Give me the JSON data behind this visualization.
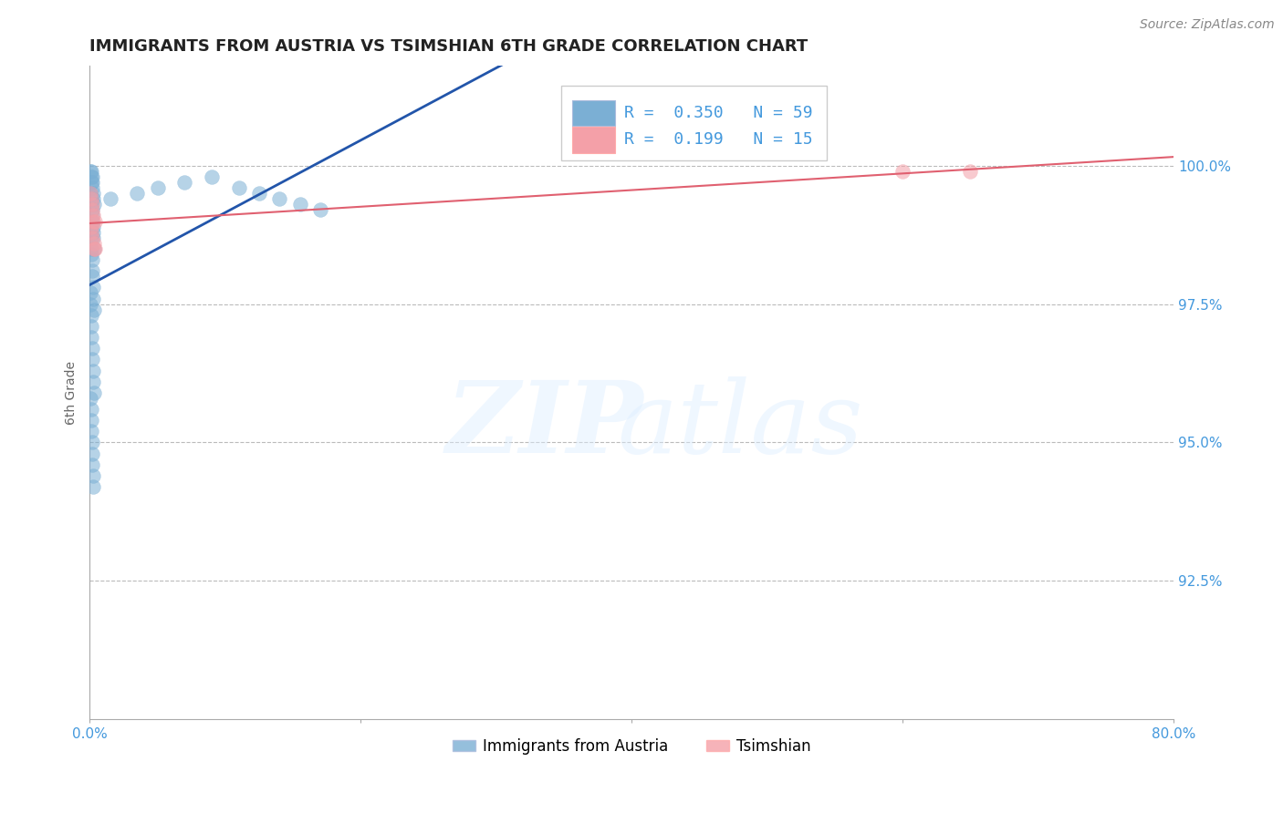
{
  "title": "IMMIGRANTS FROM AUSTRIA VS TSIMSHIAN 6TH GRADE CORRELATION CHART",
  "source": "Source: ZipAtlas.com",
  "ylabel": "6th Grade",
  "xlim": [
    0.0,
    80.0
  ],
  "ylim": [
    90.0,
    101.8
  ],
  "yticks": [
    92.5,
    95.0,
    97.5,
    100.0
  ],
  "yticklabels": [
    "92.5%",
    "95.0%",
    "97.5%",
    "100.0%"
  ],
  "xtick_vals": [
    0.0,
    20.0,
    40.0,
    60.0,
    80.0
  ],
  "xticklabels": [
    "0.0%",
    "",
    "",
    "",
    "80.0%"
  ],
  "blue_R": 0.35,
  "blue_N": 59,
  "pink_R": 0.199,
  "pink_N": 15,
  "blue_color": "#7BAFD4",
  "pink_color": "#F4A0A8",
  "blue_line_color": "#2255AA",
  "pink_line_color": "#E06070",
  "legend_label_blue": "Immigrants from Austria",
  "legend_label_pink": "Tsimshian",
  "blue_x": [
    0.05,
    0.08,
    0.1,
    0.12,
    0.15,
    0.18,
    0.2,
    0.22,
    0.25,
    0.28,
    0.06,
    0.09,
    0.11,
    0.14,
    0.16,
    0.19,
    0.21,
    0.24,
    0.27,
    0.3,
    0.05,
    0.08,
    0.1,
    0.13,
    0.15,
    0.17,
    0.2,
    0.23,
    0.26,
    0.3,
    0.04,
    0.06,
    0.09,
    0.11,
    0.13,
    0.16,
    0.18,
    0.21,
    0.24,
    0.28,
    0.05,
    0.08,
    0.1,
    0.12,
    0.15,
    0.18,
    0.2,
    0.23,
    0.26,
    1.5,
    3.5,
    5.0,
    7.0,
    9.0,
    11.0,
    12.5,
    14.0,
    15.5,
    17.0
  ],
  "blue_y": [
    99.9,
    99.8,
    99.9,
    99.7,
    99.8,
    99.7,
    99.6,
    99.5,
    99.4,
    99.3,
    99.5,
    99.4,
    99.3,
    99.2,
    99.1,
    99.0,
    98.9,
    98.8,
    98.7,
    98.5,
    98.8,
    98.7,
    98.5,
    98.4,
    98.3,
    98.1,
    98.0,
    97.8,
    97.6,
    97.4,
    97.7,
    97.5,
    97.3,
    97.1,
    96.9,
    96.7,
    96.5,
    96.3,
    96.1,
    95.9,
    95.8,
    95.6,
    95.4,
    95.2,
    95.0,
    94.8,
    94.6,
    94.4,
    94.2,
    99.4,
    99.5,
    99.6,
    99.7,
    99.8,
    99.6,
    99.5,
    99.4,
    99.3,
    99.2
  ],
  "pink_x": [
    0.05,
    0.1,
    0.15,
    0.2,
    0.25,
    0.08,
    0.12,
    0.18,
    0.3,
    0.22,
    0.28,
    0.35,
    0.4,
    60.0,
    65.0
  ],
  "pink_y": [
    99.5,
    99.4,
    99.3,
    99.2,
    99.0,
    98.9,
    98.8,
    98.7,
    98.5,
    99.1,
    98.6,
    99.0,
    98.5,
    99.9,
    99.9
  ],
  "background_color": "#ffffff",
  "grid_color": "#bbbbbb",
  "title_color": "#222222",
  "axis_color": "#aaaaaa",
  "ytick_color": "#4499DD",
  "title_fontsize": 13.0,
  "ylabel_fontsize": 10,
  "tick_fontsize": 11,
  "legend_fontsize": 13,
  "source_fontsize": 10
}
